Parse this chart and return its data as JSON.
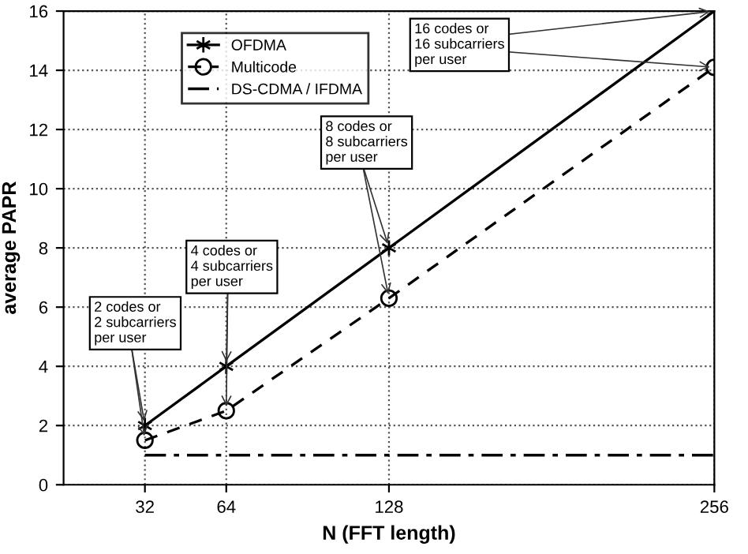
{
  "chart_data": {
    "type": "line",
    "xlabel": "N (FFT length)",
    "ylabel": "average PAPR",
    "x": [
      32,
      64,
      128,
      256
    ],
    "xlim": [
      0,
      256
    ],
    "xticks": [
      32,
      64,
      128,
      256
    ],
    "ylim": [
      0,
      16
    ],
    "yticks": [
      0,
      2,
      4,
      6,
      8,
      10,
      12,
      14,
      16
    ],
    "grid": true,
    "legend": "top left",
    "series": [
      {
        "name": "OFDMA",
        "color": "#000000",
        "values": [
          2,
          4,
          8,
          16
        ],
        "marker": "cross",
        "line_style": "solid"
      },
      {
        "name": "Multicode",
        "color": "#000000",
        "values": [
          1.5,
          2.5,
          6.3,
          14.1
        ],
        "marker": "circle",
        "line_style": "dashed"
      },
      {
        "name": "DS-CDMA / IFDMA",
        "color": "#000000",
        "x": [
          32,
          256
        ],
        "values": [
          1,
          1
        ],
        "marker": "none",
        "line_style": "dashdot"
      }
    ],
    "annotations": [
      {
        "text": "2 codes or\n2 subcarriers\nper user",
        "x": 32,
        "y": 2
      },
      {
        "text": "4 codes or\n4 subcarriers\nper user",
        "x": 64,
        "y": 4
      },
      {
        "text": "8 codes or\n8 subcarriers\nper user",
        "x": 128,
        "y": 8
      },
      {
        "text": "16 codes or\n16 subcarriers\nper user",
        "x": 256,
        "y": 16
      }
    ]
  }
}
